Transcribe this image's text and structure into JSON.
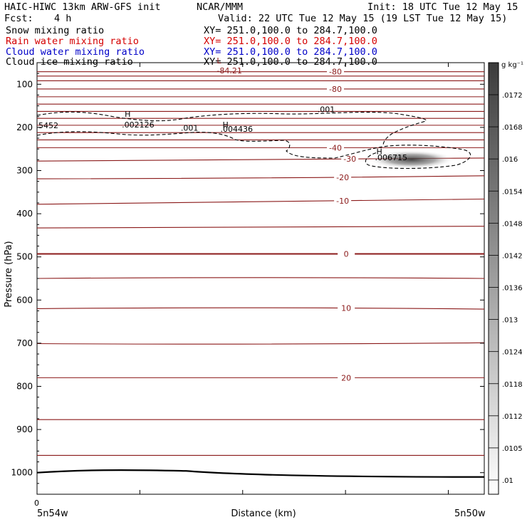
{
  "header": {
    "title_left": "HAIC-HIWC 13km ARW-GFS init",
    "title_center": "NCAR/MMM",
    "init": "Init: 18 UTC Tue 12 May 15",
    "fcst_label": "Fcst:",
    "fcst_value": "4 h",
    "valid": "Valid: 22 UTC Tue 12 May 15 (19 LST Tue 12 May 15)"
  },
  "legend": [
    {
      "label": "Snow mixing ratio",
      "xy": "XY= 251.0,100.0 to 284.7,100.0",
      "color": "#000000"
    },
    {
      "label": "Rain water mixing ratio",
      "xy": "XY= 251.0,100.0 to 284.7,100.0",
      "color": "#d40000"
    },
    {
      "label": "Cloud water mixing ratio",
      "xy": "XY= 251.0,100.0 to 284.7,100.0",
      "color": "#0000c8"
    },
    {
      "label": "Cloud ice mixing ratio",
      "xy": "XY= 251.0,100.0 to 284.7,100.0",
      "color": "#000000"
    }
  ],
  "chart_data": {
    "type": "cross-section",
    "ylabel": "Pressure (hPa)",
    "xlabel": "Distance (km)",
    "y_ticks": [
      100,
      200,
      300,
      400,
      500,
      600,
      700,
      800,
      900,
      1000
    ],
    "ylim": [
      1050,
      50
    ],
    "x_tick_zero": "0",
    "x_left_label": "5n54w",
    "x_right_label": "5n50w",
    "x_ticks": [
      0,
      143,
      286,
      429,
      572
    ],
    "xlim": [
      0,
      622
    ],
    "temperature_contours": {
      "color": "#8b1a1a",
      "levels": [
        {
          "value": "-80",
          "p": [
            71,
            71,
            71
          ],
          "label_x": 415
        },
        {
          "value": null,
          "p": [
            81,
            81,
            81
          ]
        },
        {
          "value": null,
          "p": [
            92,
            92,
            92
          ]
        },
        {
          "value": "-80",
          "p": [
            111,
            111,
            111
          ],
          "label_x": 415
        },
        {
          "value": null,
          "p": [
            129,
            129,
            129
          ]
        },
        {
          "value": null,
          "p": [
            146,
            146,
            146
          ]
        },
        {
          "value": null,
          "p": [
            163,
            163,
            163
          ]
        },
        {
          "value": null,
          "p": [
            179,
            179,
            179
          ]
        },
        {
          "value": null,
          "p": [
            195,
            195,
            195
          ]
        },
        {
          "value": null,
          "p": [
            212,
            212,
            212
          ]
        },
        {
          "value": null,
          "p": [
            229,
            229,
            229
          ]
        },
        {
          "value": "-40",
          "p": [
            247,
            247,
            247
          ],
          "label_x": 415
        },
        {
          "value": "-30",
          "p": [
            278,
            274,
            271
          ],
          "label_x": 435
        },
        {
          "value": "-20",
          "p": [
            319,
            317,
            312
          ],
          "label_x": 425
        },
        {
          "value": "-10",
          "p": [
            378,
            372,
            366
          ],
          "label_x": 425
        },
        {
          "value": null,
          "p": [
            433,
            431,
            429
          ]
        },
        {
          "value": "0",
          "p": [
            493,
            493,
            493
          ],
          "label_x": 430,
          "bold": true
        },
        {
          "value": null,
          "p": [
            550,
            548,
            550
          ]
        },
        {
          "value": "10",
          "p": [
            620,
            618,
            621
          ],
          "label_x": 430
        },
        {
          "value": null,
          "p": [
            701,
            702,
            699
          ]
        },
        {
          "value": "20",
          "p": [
            780,
            780,
            780
          ],
          "label_x": 430
        },
        {
          "value": null,
          "p": [
            877,
            877,
            877
          ]
        },
        {
          "value": null,
          "p": [
            960,
            960,
            960
          ]
        }
      ]
    },
    "ground": {
      "p": [
        1000,
        996,
        1005,
        1010
      ]
    },
    "annotations": [
      {
        "text": "L",
        "x": 250,
        "p": 52,
        "color": "#8b1a1a"
      },
      {
        "text": "-84.21",
        "x": 250,
        "p": 75,
        "color": "#8b1a1a"
      },
      {
        "text": ".001",
        "x": 390,
        "p": 165,
        "color": "#000000"
      },
      {
        "text": "H",
        "x": 122,
        "p": 175,
        "color": "#000000"
      },
      {
        "text": "5452",
        "x": 2,
        "p": 202,
        "color": "#000000"
      },
      {
        "text": ".002126",
        "x": 118,
        "p": 200,
        "color": "#000000"
      },
      {
        "text": ".001",
        "x": 200,
        "p": 208,
        "color": "#000000"
      },
      {
        "text": "H",
        "x": 258,
        "p": 200,
        "color": "#000000"
      },
      {
        "text": ".004436",
        "x": 255,
        "p": 210,
        "color": "#000000"
      },
      {
        "text": "H",
        "x": 472,
        "p": 262,
        "color": "#000000"
      },
      {
        "text": ".006715",
        "x": 470,
        "p": 276,
        "color": "#000000"
      }
    ],
    "colorbar": {
      "unit": "g kg⁻¹",
      "labels": [
        ".0172",
        ".0168",
        ".016",
        ".0154",
        ".0148",
        ".0142",
        ".0136",
        ".013",
        ".0124",
        ".0118",
        ".0112",
        ".0105",
        ".01"
      ]
    }
  }
}
